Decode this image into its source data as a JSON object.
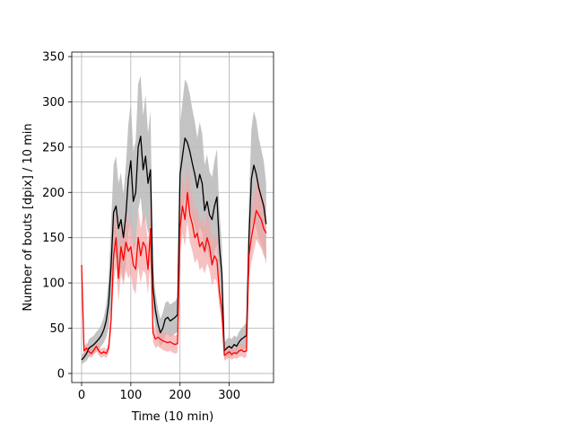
{
  "chart_data": {
    "type": "line",
    "title": "",
    "xlabel": "Time (10 min)",
    "ylabel": "Number of bouts [dpix]  / 10 min",
    "xlim": [
      -20,
      390
    ],
    "ylim": [
      -10,
      355
    ],
    "xticks": [
      0,
      100,
      200,
      300
    ],
    "yticks": [
      0,
      50,
      100,
      150,
      200,
      250,
      300,
      350
    ],
    "grid": true,
    "colors": {
      "series_1": "#000000",
      "series_2": "#ff0000",
      "band_1": "#bdbdbd",
      "band_2": "#f4a6a6"
    },
    "series": [
      {
        "x": [
          0,
          5,
          10,
          15,
          20,
          25,
          30,
          35,
          40,
          45,
          50,
          55,
          60,
          65,
          70,
          75,
          80,
          85,
          90,
          95,
          100,
          105,
          110,
          115,
          120,
          125,
          130,
          135,
          140,
          145,
          150,
          155,
          160,
          165,
          170,
          175,
          180,
          185,
          190,
          195,
          200,
          205,
          210,
          215,
          220,
          225,
          230,
          235,
          240,
          245,
          250,
          255,
          260,
          265,
          270,
          275,
          280,
          285,
          290,
          295,
          300,
          305,
          310,
          315,
          320,
          325,
          330,
          335,
          340,
          345,
          350,
          355,
          360,
          365,
          370,
          375
        ],
        "y": [
          15,
          18,
          22,
          28,
          30,
          32,
          35,
          38,
          42,
          48,
          58,
          78,
          120,
          178,
          185,
          160,
          170,
          150,
          175,
          215,
          235,
          190,
          200,
          250,
          262,
          225,
          240,
          210,
          225,
          95,
          70,
          55,
          45,
          50,
          60,
          62,
          58,
          60,
          62,
          65,
          220,
          240,
          260,
          255,
          245,
          232,
          220,
          205,
          220,
          210,
          180,
          190,
          175,
          170,
          185,
          195,
          140,
          110,
          25,
          28,
          30,
          28,
          32,
          30,
          35,
          38,
          40,
          42,
          150,
          215,
          230,
          220,
          205,
          195,
          185,
          165
        ],
        "band": [
          [
            10,
            20
          ],
          [
            12,
            24
          ],
          [
            14,
            30
          ],
          [
            18,
            38
          ],
          [
            20,
            40
          ],
          [
            22,
            42
          ],
          [
            24,
            46
          ],
          [
            27,
            49
          ],
          [
            30,
            54
          ],
          [
            34,
            62
          ],
          [
            40,
            76
          ],
          [
            50,
            106
          ],
          [
            75,
            165
          ],
          [
            125,
            231
          ],
          [
            130,
            240
          ],
          [
            110,
            210
          ],
          [
            118,
            222
          ],
          [
            102,
            198
          ],
          [
            120,
            230
          ],
          [
            155,
            275
          ],
          [
            170,
            300
          ],
          [
            135,
            245
          ],
          [
            143,
            257
          ],
          [
            180,
            320
          ],
          [
            195,
            329
          ],
          [
            165,
            285
          ],
          [
            172,
            308
          ],
          [
            155,
            265
          ],
          [
            160,
            290
          ],
          [
            70,
            120
          ],
          [
            50,
            90
          ],
          [
            38,
            72
          ],
          [
            30,
            60
          ],
          [
            33,
            67
          ],
          [
            42,
            78
          ],
          [
            44,
            80
          ],
          [
            40,
            76
          ],
          [
            42,
            78
          ],
          [
            44,
            80
          ],
          [
            46,
            84
          ],
          [
            165,
            275
          ],
          [
            180,
            300
          ],
          [
            195,
            325
          ],
          [
            190,
            320
          ],
          [
            182,
            308
          ],
          [
            172,
            292
          ],
          [
            162,
            278
          ],
          [
            150,
            260
          ],
          [
            162,
            278
          ],
          [
            155,
            265
          ],
          [
            130,
            230
          ],
          [
            138,
            242
          ],
          [
            127,
            223
          ],
          [
            123,
            217
          ],
          [
            135,
            235
          ],
          [
            142,
            248
          ],
          [
            100,
            180
          ],
          [
            78,
            142
          ],
          [
            16,
            34
          ],
          [
            18,
            38
          ],
          [
            20,
            40
          ],
          [
            18,
            38
          ],
          [
            22,
            42
          ],
          [
            20,
            40
          ],
          [
            24,
            46
          ],
          [
            26,
            50
          ],
          [
            27,
            53
          ],
          [
            28,
            56
          ],
          [
            110,
            190
          ],
          [
            160,
            270
          ],
          [
            170,
            290
          ],
          [
            160,
            280
          ],
          [
            150,
            260
          ],
          [
            142,
            248
          ],
          [
            135,
            235
          ],
          [
            120,
            210
          ]
        ]
      },
      {
        "x": [
          0,
          5,
          10,
          15,
          20,
          25,
          30,
          35,
          40,
          45,
          50,
          55,
          60,
          65,
          70,
          75,
          80,
          85,
          90,
          95,
          100,
          105,
          110,
          115,
          120,
          125,
          130,
          135,
          140,
          145,
          150,
          155,
          160,
          165,
          170,
          175,
          180,
          185,
          190,
          195,
          200,
          205,
          210,
          215,
          220,
          225,
          230,
          235,
          240,
          245,
          250,
          255,
          260,
          265,
          270,
          275,
          280,
          285,
          290,
          295,
          300,
          305,
          310,
          315,
          320,
          325,
          330,
          335,
          340,
          345,
          350,
          355,
          360,
          365,
          370,
          375
        ],
        "y": [
          120,
          25,
          28,
          24,
          22,
          26,
          30,
          25,
          22,
          24,
          22,
          28,
          60,
          130,
          150,
          105,
          140,
          125,
          145,
          135,
          140,
          120,
          115,
          150,
          130,
          145,
          140,
          115,
          160,
          45,
          38,
          40,
          38,
          36,
          35,
          34,
          35,
          33,
          32,
          33,
          160,
          185,
          170,
          200,
          175,
          165,
          150,
          155,
          140,
          145,
          135,
          150,
          140,
          120,
          130,
          125,
          90,
          70,
          20,
          22,
          24,
          21,
          23,
          22,
          25,
          26,
          24,
          25,
          130,
          150,
          165,
          180,
          175,
          170,
          160,
          155
        ],
        "band": [
          [
            105,
            135
          ],
          [
            20,
            30
          ],
          [
            22,
            34
          ],
          [
            19,
            29
          ],
          [
            17,
            27
          ],
          [
            21,
            31
          ],
          [
            24,
            36
          ],
          [
            20,
            30
          ],
          [
            17,
            27
          ],
          [
            19,
            29
          ],
          [
            17,
            27
          ],
          [
            22,
            34
          ],
          [
            45,
            75
          ],
          [
            100,
            160
          ],
          [
            118,
            182
          ],
          [
            80,
            130
          ],
          [
            110,
            170
          ],
          [
            97,
            153
          ],
          [
            114,
            176
          ],
          [
            105,
            165
          ],
          [
            110,
            170
          ],
          [
            93,
            147
          ],
          [
            88,
            142
          ],
          [
            118,
            182
          ],
          [
            100,
            160
          ],
          [
            114,
            176
          ],
          [
            110,
            170
          ],
          [
            88,
            142
          ],
          [
            125,
            195
          ],
          [
            35,
            55
          ],
          [
            28,
            48
          ],
          [
            30,
            50
          ],
          [
            28,
            48
          ],
          [
            26,
            46
          ],
          [
            25,
            45
          ],
          [
            24,
            44
          ],
          [
            25,
            45
          ],
          [
            23,
            43
          ],
          [
            22,
            42
          ],
          [
            23,
            43
          ],
          [
            130,
            190
          ],
          [
            155,
            215
          ],
          [
            140,
            200
          ],
          [
            168,
            232
          ],
          [
            145,
            205
          ],
          [
            135,
            195
          ],
          [
            122,
            178
          ],
          [
            127,
            183
          ],
          [
            114,
            166
          ],
          [
            118,
            172
          ],
          [
            110,
            160
          ],
          [
            122,
            178
          ],
          [
            114,
            166
          ],
          [
            97,
            143
          ],
          [
            105,
            155
          ],
          [
            101,
            149
          ],
          [
            72,
            108
          ],
          [
            56,
            84
          ],
          [
            14,
            26
          ],
          [
            16,
            28
          ],
          [
            17,
            31
          ],
          [
            15,
            27
          ],
          [
            17,
            29
          ],
          [
            16,
            28
          ],
          [
            18,
            32
          ],
          [
            19,
            33
          ],
          [
            17,
            31
          ],
          [
            18,
            32
          ],
          [
            105,
            155
          ],
          [
            122,
            178
          ],
          [
            135,
            195
          ],
          [
            148,
            212
          ],
          [
            143,
            207
          ],
          [
            138,
            202
          ],
          [
            130,
            190
          ],
          [
            125,
            185
          ]
        ]
      }
    ]
  }
}
